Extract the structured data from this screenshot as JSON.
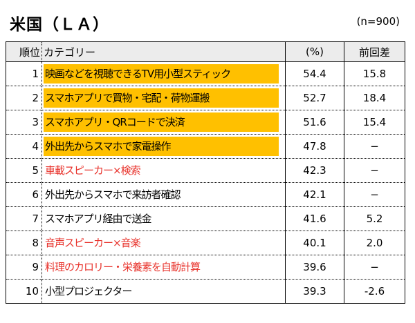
{
  "title": "米国（ＬＡ）",
  "sample": "(n=900)",
  "headers": {
    "rank": "順位",
    "category": "カテゴリー",
    "pct": "(%)",
    "diff": "前回差"
  },
  "colors": {
    "highlight": "#ffc000",
    "red_text": "#e8322b"
  },
  "rows": [
    {
      "rank": "1",
      "category": "映画などを視聴できるTV用小型スティック",
      "value": "54.4",
      "diff": "15.8",
      "highlight": true,
      "red": false
    },
    {
      "rank": "2",
      "category": "スマホアプリで買物・宅配・荷物運搬",
      "value": "52.7",
      "diff": "18.4",
      "highlight": true,
      "red": false
    },
    {
      "rank": "3",
      "category": "スマホアプリ・QRコードで決済",
      "value": "51.6",
      "diff": "15.4",
      "highlight": true,
      "red": false
    },
    {
      "rank": "4",
      "category": "外出先からスマホで家電操作",
      "value": "47.8",
      "diff": "−",
      "highlight": true,
      "red": false
    },
    {
      "rank": "5",
      "category": "車載スピーカー×検索",
      "value": "42.3",
      "diff": "−",
      "highlight": false,
      "red": true
    },
    {
      "rank": "6",
      "category": "外出先からスマホで来訪者確認",
      "value": "42.1",
      "diff": "−",
      "highlight": false,
      "red": false
    },
    {
      "rank": "7",
      "category": "スマホアプリ経由で送金",
      "value": "41.6",
      "diff": "5.2",
      "highlight": false,
      "red": false
    },
    {
      "rank": "8",
      "category": "音声スピーカー×音楽",
      "value": "40.1",
      "diff": "2.0",
      "highlight": false,
      "red": true
    },
    {
      "rank": "9",
      "category": "料理のカロリー・栄養素を自動計算",
      "value": "39.6",
      "diff": "−",
      "highlight": false,
      "red": true
    },
    {
      "rank": "10",
      "category": "小型プロジェクター",
      "value": "39.3",
      "diff": "-2.6",
      "highlight": false,
      "red": false
    }
  ]
}
